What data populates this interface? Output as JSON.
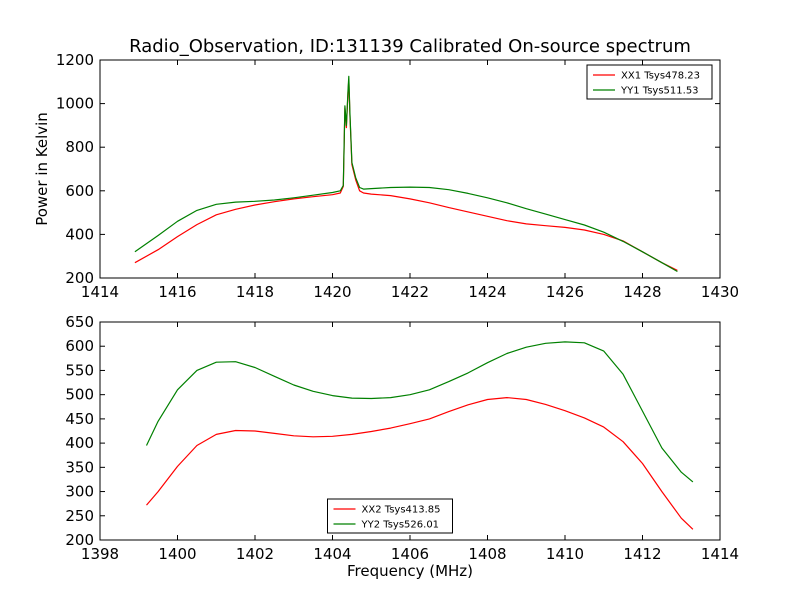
{
  "title": "Radio_Observation, ID:131139 Calibrated On-source spectrum",
  "ylabel": "Power in Kelvin",
  "xlabel": "Frequency (MHz)",
  "colors": {
    "red": "#ff0000",
    "green": "#008000"
  },
  "chart_data": [
    {
      "type": "line",
      "xlim": [
        1414,
        1430
      ],
      "ylim": [
        200,
        1200
      ],
      "xticks": [
        1414,
        1416,
        1418,
        1420,
        1422,
        1424,
        1426,
        1428,
        1430
      ],
      "yticks": [
        200,
        400,
        600,
        800,
        1000,
        1200
      ],
      "ylabel": "Power in Kelvin",
      "legend_position": "top-right",
      "series": [
        {
          "name": "XX1 Tsys478.23",
          "color": "#ff0000",
          "x": [
            1414.9,
            1415.5,
            1416.0,
            1416.5,
            1417.0,
            1417.5,
            1418.0,
            1418.5,
            1419.0,
            1419.5,
            1420.0,
            1420.2,
            1420.28,
            1420.32,
            1420.36,
            1420.4,
            1420.42,
            1420.45,
            1420.5,
            1420.6,
            1420.7,
            1420.8,
            1421.0,
            1421.5,
            1422.0,
            1422.5,
            1423.0,
            1423.5,
            1424.0,
            1424.5,
            1425.0,
            1425.5,
            1426.0,
            1426.5,
            1427.0,
            1427.5,
            1428.0,
            1428.5,
            1428.9
          ],
          "values": [
            270,
            330,
            390,
            445,
            490,
            515,
            535,
            550,
            563,
            573,
            582,
            590,
            620,
            980,
            890,
            1050,
            1110,
            950,
            720,
            650,
            600,
            590,
            585,
            578,
            563,
            545,
            523,
            503,
            483,
            463,
            448,
            440,
            432,
            420,
            400,
            370,
            320,
            270,
            235
          ]
        },
        {
          "name": "YY1 Tsys511.53",
          "color": "#008000",
          "x": [
            1414.9,
            1415.5,
            1416.0,
            1416.5,
            1417.0,
            1417.5,
            1418.0,
            1418.5,
            1419.0,
            1419.5,
            1420.0,
            1420.2,
            1420.28,
            1420.32,
            1420.36,
            1420.4,
            1420.42,
            1420.45,
            1420.5,
            1420.6,
            1420.7,
            1420.8,
            1421.0,
            1421.5,
            1422.0,
            1422.5,
            1423.0,
            1423.5,
            1424.0,
            1424.5,
            1425.0,
            1425.5,
            1426.0,
            1426.5,
            1427.0,
            1427.5,
            1428.0,
            1428.5,
            1428.9
          ],
          "values": [
            320,
            395,
            460,
            510,
            538,
            548,
            552,
            558,
            568,
            580,
            592,
            600,
            625,
            990,
            900,
            1060,
            1125,
            960,
            730,
            660,
            615,
            608,
            610,
            615,
            617,
            615,
            605,
            588,
            568,
            545,
            518,
            493,
            468,
            443,
            410,
            368,
            320,
            270,
            230
          ]
        }
      ]
    },
    {
      "type": "line",
      "xlim": [
        1398,
        1414
      ],
      "ylim": [
        200,
        650
      ],
      "xticks": [
        1398,
        1400,
        1402,
        1404,
        1406,
        1408,
        1410,
        1412,
        1414
      ],
      "yticks": [
        200,
        250,
        300,
        350,
        400,
        450,
        500,
        550,
        600,
        650
      ],
      "xlabel": "Frequency (MHz)",
      "legend_position": "lower-center",
      "series": [
        {
          "name": "XX2 Tsys413.85",
          "color": "#ff0000",
          "x": [
            1399.2,
            1399.5,
            1400.0,
            1400.5,
            1401.0,
            1401.5,
            1402.0,
            1402.5,
            1403.0,
            1403.5,
            1404.0,
            1404.5,
            1405.0,
            1405.5,
            1406.0,
            1406.5,
            1407.0,
            1407.5,
            1408.0,
            1408.5,
            1409.0,
            1409.5,
            1410.0,
            1410.5,
            1411.0,
            1411.5,
            1412.0,
            1412.5,
            1413.0,
            1413.3
          ],
          "values": [
            272,
            300,
            352,
            395,
            418,
            426,
            425,
            420,
            415,
            413,
            414,
            418,
            424,
            431,
            440,
            450,
            465,
            479,
            490,
            494,
            490,
            480,
            467,
            452,
            433,
            403,
            358,
            300,
            245,
            222
          ]
        },
        {
          "name": "YY2 Tsys526.01",
          "color": "#008000",
          "x": [
            1399.2,
            1399.5,
            1400.0,
            1400.5,
            1401.0,
            1401.5,
            1402.0,
            1402.5,
            1403.0,
            1403.5,
            1404.0,
            1404.5,
            1405.0,
            1405.5,
            1406.0,
            1406.5,
            1407.0,
            1407.5,
            1408.0,
            1408.5,
            1409.0,
            1409.5,
            1410.0,
            1410.5,
            1411.0,
            1411.5,
            1412.0,
            1412.5,
            1413.0,
            1413.3
          ],
          "values": [
            395,
            445,
            510,
            550,
            567,
            568,
            556,
            538,
            520,
            507,
            498,
            493,
            492,
            494,
            500,
            510,
            527,
            545,
            566,
            585,
            598,
            606,
            609,
            607,
            590,
            542,
            466,
            390,
            340,
            320
          ]
        }
      ]
    }
  ]
}
